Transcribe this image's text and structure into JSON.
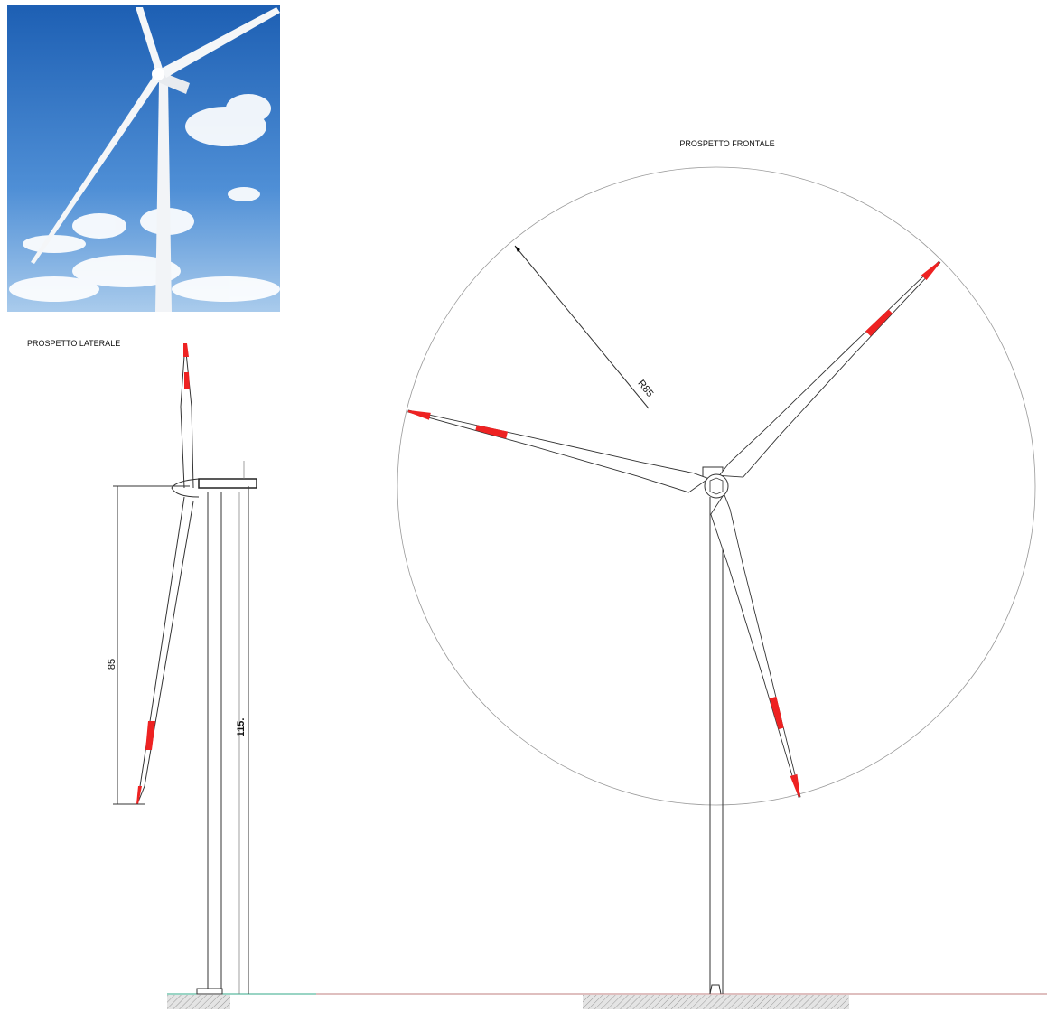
{
  "labels": {
    "front_view": "PROSPETTO FRONTALE",
    "side_view": "PROSPETTO LATERALE"
  },
  "dimensions": {
    "rotor_radius": "R85",
    "blade_length": "85",
    "hub_height": "115."
  }
}
